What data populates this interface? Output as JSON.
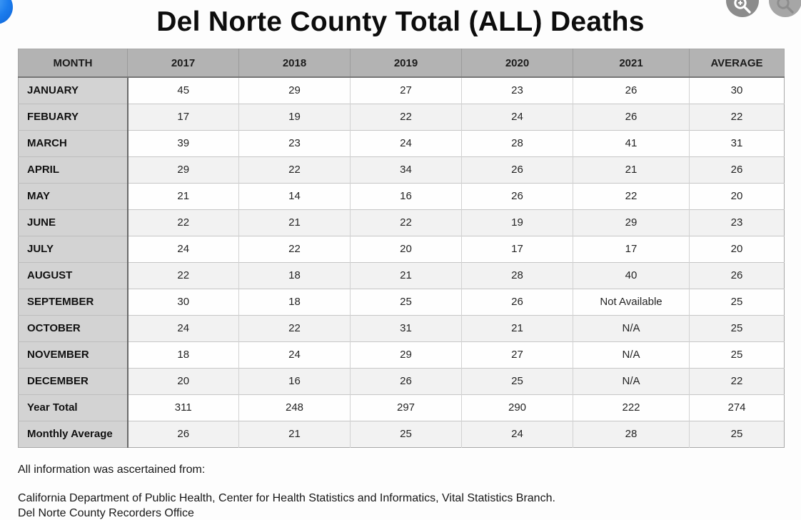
{
  "page": {
    "title": "Del Norte County Total (ALL) Deaths"
  },
  "toolbar": {
    "icons": [
      "magnifier-icon",
      "magnifier-icon"
    ]
  },
  "badge_icon": "blue-circle-app-icon",
  "colors": {
    "header_bg": "#b3b3b3",
    "label_col_bg": "#d3d3d3",
    "row_alt_bg": "#f2f2f2",
    "accent_blue": "#1b7ced"
  },
  "chart_data": {
    "type": "table",
    "title": "Del Norte County Total (ALL) Deaths",
    "columns": [
      "MONTH",
      "2017",
      "2018",
      "2019",
      "2020",
      "2021",
      "AVERAGE"
    ],
    "rows": [
      {
        "label": "JANUARY",
        "values": [
          "45",
          "29",
          "27",
          "23",
          "26",
          "30"
        ]
      },
      {
        "label": "FEBUARY",
        "values": [
          "17",
          "19",
          "22",
          "24",
          "26",
          "22"
        ]
      },
      {
        "label": "MARCH",
        "values": [
          "39",
          "23",
          "24",
          "28",
          "41",
          "31"
        ]
      },
      {
        "label": "APRIL",
        "values": [
          "29",
          "22",
          "34",
          "26",
          "21",
          "26"
        ]
      },
      {
        "label": "MAY",
        "values": [
          "21",
          "14",
          "16",
          "26",
          "22",
          "20"
        ]
      },
      {
        "label": "JUNE",
        "values": [
          "22",
          "21",
          "22",
          "19",
          "29",
          "23"
        ]
      },
      {
        "label": "JULY",
        "values": [
          "24",
          "22",
          "20",
          "17",
          "17",
          "20"
        ]
      },
      {
        "label": "AUGUST",
        "values": [
          "22",
          "18",
          "21",
          "28",
          "40",
          "26"
        ]
      },
      {
        "label": "SEPTEMBER",
        "values": [
          "30",
          "18",
          "25",
          "26",
          "Not Available",
          "25"
        ]
      },
      {
        "label": "OCTOBER",
        "values": [
          "24",
          "22",
          "31",
          "21",
          "N/A",
          "25"
        ]
      },
      {
        "label": "NOVEMBER",
        "values": [
          "18",
          "24",
          "29",
          "27",
          "N/A",
          "25"
        ]
      },
      {
        "label": "DECEMBER",
        "values": [
          "20",
          "16",
          "26",
          "25",
          "N/A",
          "22"
        ]
      },
      {
        "label": "Year Total",
        "values": [
          "311",
          "248",
          "297",
          "290",
          "222",
          "274"
        ]
      },
      {
        "label": "Monthly Average",
        "values": [
          "26",
          "21",
          "25",
          "24",
          "28",
          "25"
        ]
      }
    ]
  },
  "footer": {
    "line1": "All information was ascertained from:",
    "line2": "California Department of Public Health, Center for Health Statistics and Informatics, Vital Statistics Branch.",
    "line3": "Del Norte County Recorders Office"
  }
}
